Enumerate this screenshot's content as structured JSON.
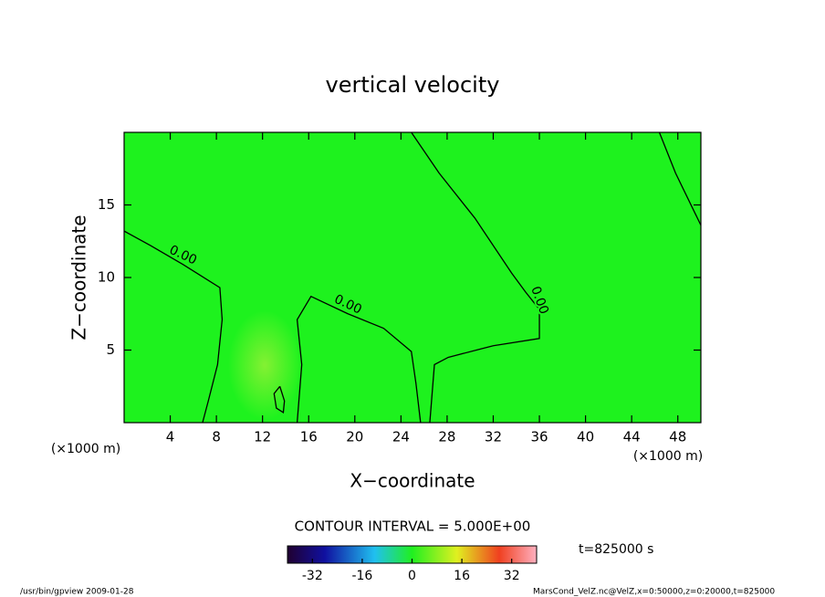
{
  "chart_data": {
    "type": "contour",
    "title": "vertical velocity",
    "x_label": "X−coordinate",
    "y_label": "Z−coordinate",
    "unit_label": "(×1000 m)",
    "xlim": [
      0,
      50
    ],
    "ylim": [
      0,
      20
    ],
    "xticks": [
      4,
      8,
      12,
      16,
      20,
      24,
      28,
      32,
      36,
      40,
      44,
      48
    ],
    "yticks": [
      5,
      10,
      15
    ],
    "color": "#1ef21e",
    "contours": [
      {
        "label": "0.00",
        "x": [
          0,
          2.3,
          5.1,
          8.3,
          8.5,
          8.1,
          7.3,
          6.8
        ],
        "y": [
          13.2,
          12.2,
          10.9,
          9.3,
          7.1,
          4.0,
          1.5,
          0
        ]
      },
      {
        "label": "0.00",
        "x": [
          15,
          15.4,
          15,
          16.2,
          19.4,
          22.5,
          24.9,
          25.3,
          25.7
        ],
        "y": [
          0,
          4.0,
          7.1,
          8.7,
          7.5,
          6.5,
          4.9,
          2.7,
          0
        ]
      },
      {
        "label": "0.00",
        "x": [
          26.5,
          26.9,
          28.1,
          32,
          36,
          36,
          34.8,
          33.6,
          30.4,
          27.3,
          24.9
        ],
        "y": [
          0,
          4.0,
          4.5,
          5.3,
          5.8,
          7.8,
          9.0,
          10.3,
          14.1,
          17.2,
          20
        ]
      },
      {
        "x": [
          46.4,
          47.8,
          50
        ],
        "y": [
          20,
          17.2,
          13.6
        ]
      },
      {
        "x": [
          13.5,
          13.9,
          13.8,
          13.2,
          13.0,
          13.5
        ],
        "y": [
          2.5,
          1.5,
          0.7,
          1.0,
          2.0,
          2.5
        ]
      }
    ],
    "colorbar": {
      "title": "CONTOUR INTERVAL = 5.000E+00",
      "lim": [
        -40,
        40
      ],
      "ticks": [
        -32,
        -16,
        0,
        16,
        32
      ]
    },
    "time_label": "t=825000 s",
    "footer_left": "/usr/bin/gpview   2009-01-28",
    "footer_right": "MarsCond_VelZ.nc@VelZ,x=0:50000,z=0:20000,t=825000"
  }
}
